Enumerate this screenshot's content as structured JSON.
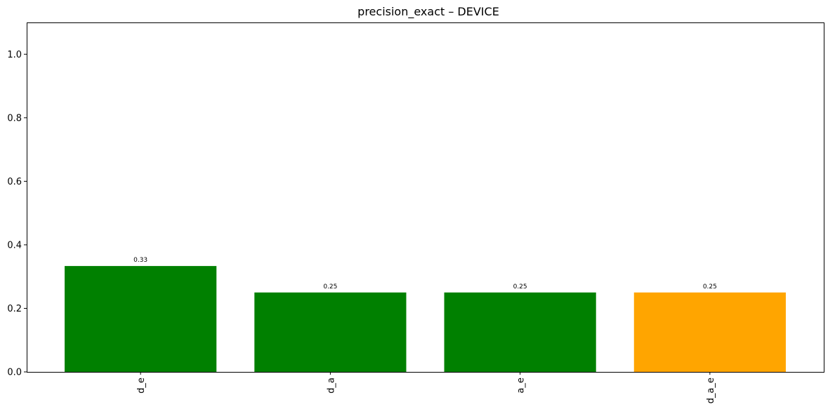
{
  "chart_data": {
    "type": "bar",
    "title": "precision_exact – DEVICE",
    "xlabel": "",
    "ylabel": "",
    "categories": [
      "d_e",
      "d_a",
      "a_e",
      "d_a_e"
    ],
    "values": [
      0.3333,
      0.25,
      0.25,
      0.25
    ],
    "value_labels": [
      "0.33",
      "0.25",
      "0.25",
      "0.25"
    ],
    "colors": [
      "#008000",
      "#008000",
      "#008000",
      "#ffa500"
    ],
    "ylim": [
      0,
      1.1
    ],
    "yticks": [
      0.0,
      0.2,
      0.4,
      0.6,
      0.8,
      1.0
    ],
    "ytick_labels": [
      "0.0",
      "0.2",
      "0.4",
      "0.6",
      "0.8",
      "1.0"
    ],
    "grid": false,
    "legend": "none"
  }
}
